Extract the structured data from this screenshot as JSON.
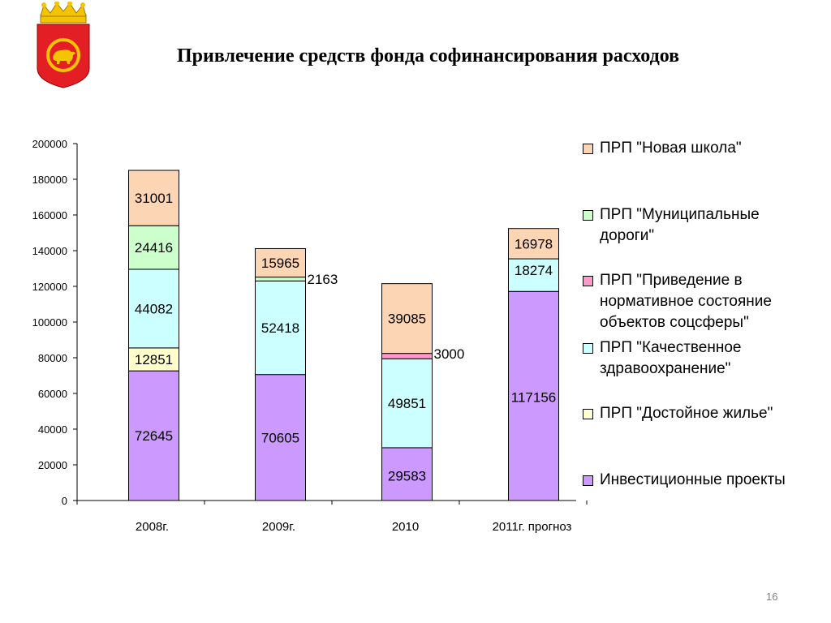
{
  "title": "Привлечение средств фонда софинансирования расходов",
  "page_number": "16",
  "colors": {
    "investment": "#cc99ff",
    "housing": "#ffffcc",
    "health": "#ccffff",
    "social": "#ff99cc",
    "roads": "#ccffcc",
    "school": "#fcd5b4",
    "emblem_red": "#e31e24",
    "emblem_gold": "#f5c400"
  },
  "chart_data": {
    "type": "bar",
    "stacked": true,
    "categories": [
      "2008г.",
      "2009г.",
      "2010",
      "2011г. прогноз"
    ],
    "ylim": [
      0,
      200000
    ],
    "yticks": [
      "0",
      "20000",
      "40000",
      "60000",
      "80000",
      "100000",
      "120000",
      "140000",
      "160000",
      "180000",
      "200000"
    ],
    "legend_position": "right",
    "series": [
      {
        "name": "Инвестиционные проекты",
        "color_key": "investment",
        "values": [
          72645,
          70605,
          29583,
          117156
        ],
        "labels": [
          "72645",
          "70605",
          "29583",
          "117156"
        ]
      },
      {
        "name": "ПРП \"Достойное жилье\"",
        "color_key": "housing",
        "values": [
          12851,
          0,
          0,
          0
        ],
        "labels": [
          "12851",
          "",
          "",
          ""
        ]
      },
      {
        "name": "ПРП \"Качественное здравоохранение\"",
        "color_key": "health",
        "values": [
          44082,
          52418,
          49851,
          18274
        ],
        "labels": [
          "44082",
          "52418",
          "49851",
          "18274"
        ]
      },
      {
        "name": "ПРП \"Приведение в нормативное состояние объектов соцсферы\"",
        "color_key": "social",
        "values": [
          0,
          0,
          3000,
          0
        ],
        "labels": [
          "",
          "",
          "3000",
          ""
        ]
      },
      {
        "name": "ПРП \"Муниципальные дороги\"",
        "color_key": "roads",
        "values": [
          24416,
          2163,
          0,
          0
        ],
        "labels": [
          "24416",
          "2163",
          "",
          ""
        ]
      },
      {
        "name": "ПРП \"Новая школа\"",
        "color_key": "school",
        "values": [
          31001,
          15965,
          39085,
          16978
        ],
        "labels": [
          "31001",
          "15965",
          "39085",
          "16978"
        ]
      }
    ]
  },
  "legend": [
    {
      "label": "ПРП \"Новая школа\"",
      "color_key": "school"
    },
    {
      "label": "ПРП \"Муниципальные дороги\"",
      "color_key": "roads"
    },
    {
      "label": "ПРП \"Приведение в нормативное состояние объектов соцсферы\"",
      "color_key": "social"
    },
    {
      "label": "ПРП \"Качественное здравоохранение\"",
      "color_key": "health"
    },
    {
      "label": "ПРП \"Достойное жилье\"",
      "color_key": "housing"
    },
    {
      "label": "Инвестиционные проекты",
      "color_key": "investment"
    }
  ]
}
